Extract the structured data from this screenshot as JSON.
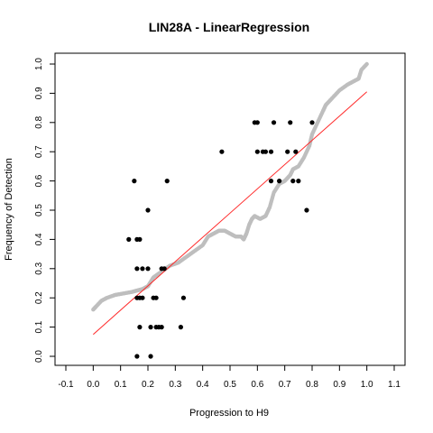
{
  "chart_data": {
    "type": "scatter",
    "title": "LIN28A - LinearRegression",
    "xlabel": "Progression to H9",
    "ylabel": "Frequency of Detection",
    "xlim": [
      -0.1,
      1.1
    ],
    "ylim": [
      0,
      1.0
    ],
    "x_ticks": [
      "-0.1",
      "0.0",
      "0.1",
      "0.2",
      "0.3",
      "0.4",
      "0.5",
      "0.6",
      "0.7",
      "0.8",
      "0.9",
      "1.0",
      "1.1"
    ],
    "y_ticks": [
      "0.0",
      "0.1",
      "0.2",
      "0.3",
      "0.4",
      "0.5",
      "0.6",
      "0.7",
      "0.8",
      "0.9",
      "1.0"
    ],
    "colors": {
      "observed": "#000000",
      "smoothed": "#bebebe",
      "regression": "#ff2a2a"
    },
    "observed_points": [
      {
        "x": 0.16,
        "y": 0.0
      },
      {
        "x": 0.21,
        "y": 0.0
      },
      {
        "x": 0.17,
        "y": 0.1
      },
      {
        "x": 0.21,
        "y": 0.1
      },
      {
        "x": 0.23,
        "y": 0.1
      },
      {
        "x": 0.24,
        "y": 0.1
      },
      {
        "x": 0.25,
        "y": 0.1
      },
      {
        "x": 0.32,
        "y": 0.1
      },
      {
        "x": 0.16,
        "y": 0.2
      },
      {
        "x": 0.17,
        "y": 0.2
      },
      {
        "x": 0.18,
        "y": 0.2
      },
      {
        "x": 0.22,
        "y": 0.2
      },
      {
        "x": 0.23,
        "y": 0.2
      },
      {
        "x": 0.33,
        "y": 0.2
      },
      {
        "x": 0.16,
        "y": 0.3
      },
      {
        "x": 0.18,
        "y": 0.3
      },
      {
        "x": 0.2,
        "y": 0.3
      },
      {
        "x": 0.25,
        "y": 0.3
      },
      {
        "x": 0.26,
        "y": 0.3
      },
      {
        "x": 0.13,
        "y": 0.4
      },
      {
        "x": 0.16,
        "y": 0.4
      },
      {
        "x": 0.17,
        "y": 0.4
      },
      {
        "x": 0.2,
        "y": 0.5
      },
      {
        "x": 0.78,
        "y": 0.5
      },
      {
        "x": 0.15,
        "y": 0.6
      },
      {
        "x": 0.27,
        "y": 0.6
      },
      {
        "x": 0.65,
        "y": 0.6
      },
      {
        "x": 0.68,
        "y": 0.6
      },
      {
        "x": 0.73,
        "y": 0.6
      },
      {
        "x": 0.75,
        "y": 0.6
      },
      {
        "x": 0.47,
        "y": 0.7
      },
      {
        "x": 0.6,
        "y": 0.7
      },
      {
        "x": 0.62,
        "y": 0.7
      },
      {
        "x": 0.63,
        "y": 0.7
      },
      {
        "x": 0.65,
        "y": 0.7
      },
      {
        "x": 0.71,
        "y": 0.7
      },
      {
        "x": 0.74,
        "y": 0.7
      },
      {
        "x": 0.59,
        "y": 0.8
      },
      {
        "x": 0.6,
        "y": 0.8
      },
      {
        "x": 0.66,
        "y": 0.8
      },
      {
        "x": 0.72,
        "y": 0.8
      },
      {
        "x": 0.8,
        "y": 0.8
      }
    ],
    "smoothed_curve": [
      [
        0.0,
        0.16
      ],
      [
        0.01,
        0.17
      ],
      [
        0.03,
        0.19
      ],
      [
        0.05,
        0.2
      ],
      [
        0.08,
        0.21
      ],
      [
        0.11,
        0.215
      ],
      [
        0.14,
        0.22
      ],
      [
        0.16,
        0.225
      ],
      [
        0.18,
        0.23
      ],
      [
        0.2,
        0.24
      ],
      [
        0.22,
        0.27
      ],
      [
        0.25,
        0.29
      ],
      [
        0.28,
        0.31
      ],
      [
        0.31,
        0.32
      ],
      [
        0.34,
        0.34
      ],
      [
        0.37,
        0.36
      ],
      [
        0.4,
        0.38
      ],
      [
        0.42,
        0.41
      ],
      [
        0.44,
        0.42
      ],
      [
        0.46,
        0.43
      ],
      [
        0.48,
        0.43
      ],
      [
        0.5,
        0.42
      ],
      [
        0.52,
        0.41
      ],
      [
        0.54,
        0.41
      ],
      [
        0.55,
        0.4
      ],
      [
        0.56,
        0.42
      ],
      [
        0.57,
        0.45
      ],
      [
        0.58,
        0.47
      ],
      [
        0.59,
        0.48
      ],
      [
        0.61,
        0.47
      ],
      [
        0.63,
        0.48
      ],
      [
        0.645,
        0.51
      ],
      [
        0.66,
        0.56
      ],
      [
        0.68,
        0.59
      ],
      [
        0.7,
        0.6
      ],
      [
        0.72,
        0.62
      ],
      [
        0.73,
        0.64
      ],
      [
        0.75,
        0.65
      ],
      [
        0.77,
        0.68
      ],
      [
        0.79,
        0.72
      ],
      [
        0.8,
        0.76
      ],
      [
        0.82,
        0.8
      ],
      [
        0.84,
        0.84
      ],
      [
        0.85,
        0.86
      ],
      [
        0.87,
        0.88
      ],
      [
        0.9,
        0.91
      ],
      [
        0.93,
        0.93
      ],
      [
        0.95,
        0.94
      ],
      [
        0.97,
        0.95
      ],
      [
        0.98,
        0.98
      ],
      [
        1.0,
        1.0
      ]
    ],
    "regression_line": {
      "x": [
        0.0,
        1.0
      ],
      "y": [
        0.075,
        0.905
      ]
    },
    "grid": false,
    "legend": "none"
  }
}
